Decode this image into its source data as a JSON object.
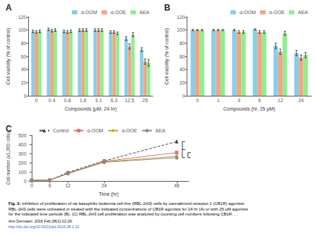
{
  "chart_data": [
    {
      "type": "bar",
      "title": "A",
      "xlabel": "Compounds (μM, 24 hr)",
      "ylabel": "Cell viability (% of control)",
      "categories": [
        "0",
        "0.4",
        "0.8",
        "1.6",
        "3.1",
        "6.3",
        "12.5",
        "25"
      ],
      "series": [
        {
          "name": "α-OOM",
          "color": "#87CEEB",
          "values": [
            98,
            101,
            98,
            100,
            100,
            97,
            87,
            70
          ],
          "errors": [
            2,
            2,
            2,
            2,
            2,
            2,
            3,
            3
          ]
        },
        {
          "name": "α-OOE",
          "color": "#F4A582",
          "values": [
            97,
            99,
            97,
            100,
            100,
            97,
            75,
            52
          ],
          "errors": [
            2,
            2,
            2,
            2,
            2,
            2,
            4,
            4
          ]
        },
        {
          "name": "AEA",
          "color": "#90EE90",
          "values": [
            98,
            100,
            98,
            100,
            100,
            95,
            93,
            50
          ],
          "errors": [
            2,
            2,
            2,
            2,
            2,
            2,
            3,
            5
          ]
        }
      ],
      "ylim": [
        0,
        120
      ],
      "yticks": [
        0,
        20,
        40,
        60,
        80,
        100,
        120
      ],
      "grid": false,
      "legend": "upper right"
    },
    {
      "type": "bar",
      "title": "B",
      "xlabel": "Compounds (hr, 25 μM)",
      "ylabel": "Cell viability (% of control)",
      "categories": [
        "0",
        "1",
        "3",
        "6",
        "12",
        "24"
      ],
      "series": [
        {
          "name": "α-OOM",
          "color": "#87CEEB",
          "values": [
            100,
            100,
            100,
            101,
            76,
            65
          ],
          "errors": [
            1,
            1,
            1,
            1,
            4,
            4
          ]
        },
        {
          "name": "α-OOE",
          "color": "#F4A582",
          "values": [
            100,
            100,
            97,
            97,
            67,
            58
          ],
          "errors": [
            1,
            1,
            2,
            2,
            4,
            4
          ]
        },
        {
          "name": "AEA",
          "color": "#90EE90",
          "values": [
            100,
            100,
            97,
            97,
            95,
            62
          ],
          "errors": [
            1,
            1,
            2,
            2,
            3,
            4
          ]
        }
      ],
      "ylim": [
        0,
        120
      ],
      "yticks": [
        0,
        20,
        40,
        60,
        80,
        100,
        120
      ],
      "grid": false,
      "legend": "upper right"
    },
    {
      "type": "line",
      "title": "C",
      "xlabel": "Time (hr)",
      "ylabel": "Cell number (x1,000 cells)",
      "x": [
        0,
        6,
        12,
        24,
        48
      ],
      "series": [
        {
          "name": "Control",
          "color": "#444444",
          "marker": "triangle",
          "line_style": "dashed",
          "values": [
            8,
            10,
            95,
            220,
            430
          ],
          "errors": [
            1,
            1,
            8,
            15,
            15
          ]
        },
        {
          "name": "α-OOM",
          "color": "#E07070",
          "marker": "square",
          "line_style": "solid",
          "values": [
            8,
            10,
            85,
            215,
            310
          ],
          "errors": [
            1,
            1,
            8,
            15,
            15
          ]
        },
        {
          "name": "α-OOE",
          "color": "#C8A020",
          "marker": "diamond",
          "line_style": "solid",
          "values": [
            8,
            10,
            83,
            210,
            270
          ],
          "errors": [
            1,
            1,
            8,
            15,
            15
          ]
        },
        {
          "name": "AEA",
          "color": "#888888",
          "marker": "circle",
          "line_style": "solid",
          "values": [
            8,
            10,
            80,
            205,
            255
          ],
          "errors": [
            1,
            1,
            8,
            15,
            15
          ]
        }
      ],
      "xlim": [
        -1,
        52
      ],
      "xticks": [
        0,
        6,
        12,
        24,
        48
      ],
      "ylim": [
        0,
        500
      ],
      "yticks": [
        0,
        100,
        200,
        300,
        400,
        500
      ],
      "grid": false,
      "legend": "upper left",
      "brackets": [
        [
          430,
          255
        ],
        [
          310,
          255
        ]
      ],
      "annotations": [
        {
          "text": "Fig. 3."
        },
        {
          "text": " Inhibition of proliferation of rat basophilic leukemia cell line (RBL-2H3) cells by cannabinoid receptor-1 (CB1R) agonists.\nRBL-2H3 cells were untreated or treated with the indicated concentrations of CB1R agonists for 24 hr (A) or with 25 μM agonists\nfor the indicated time periods (B). (C) RBL-2H3 cell proliferation was analyzed by counting cell numbers following CB1R. . ."
        },
        {
          "text": "Ann Dermatol. 2016 Feb;28(1):22-29."
        },
        {
          "text": "http://dx.doi.org/10.5021/ad.2016.28.1.22",
          "color": "#3366CC"
        }
      ]
    }
  ]
}
